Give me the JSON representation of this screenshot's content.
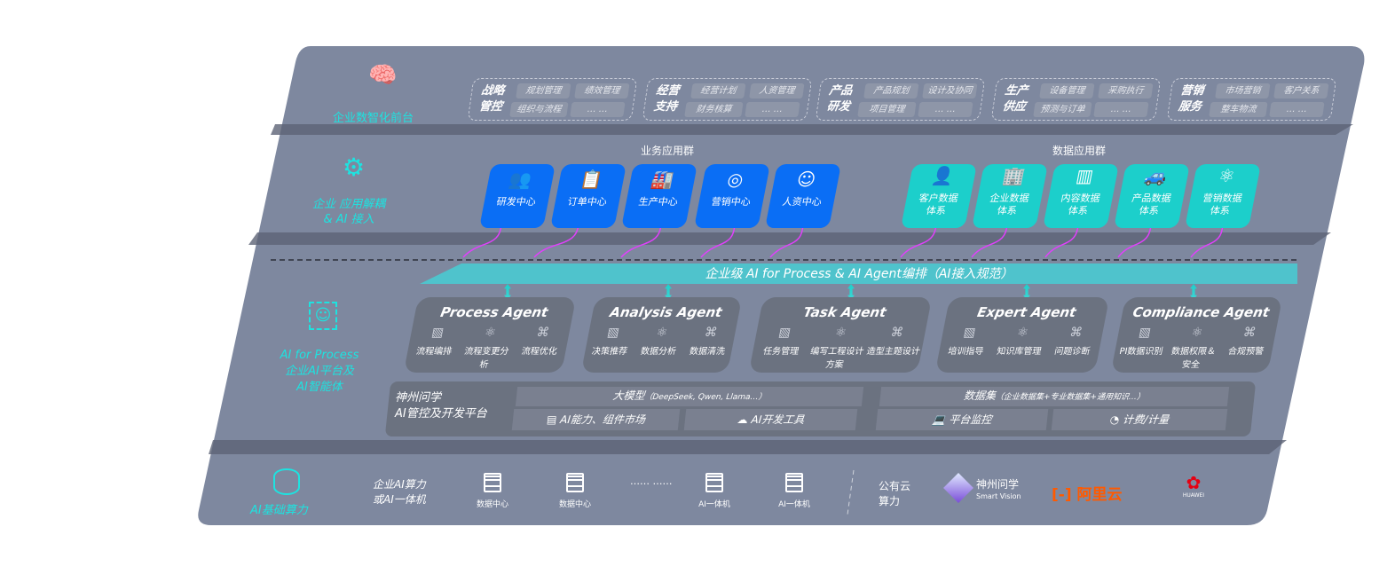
{
  "layers": {
    "front": {
      "label": "企业数智化前台",
      "icon": "brain-icon",
      "groups": [
        {
          "title": [
            "战略",
            "管控"
          ],
          "items": [
            "规划管理",
            "绩效管理",
            "组织与流程",
            "… …"
          ]
        },
        {
          "title": [
            "经营",
            "支持"
          ],
          "items": [
            "经营计划",
            "人资管理",
            "财务核算",
            "… …"
          ]
        },
        {
          "title": [
            "产品",
            "研发"
          ],
          "items": [
            "产品规划",
            "设计及协同",
            "项目管理",
            "… …"
          ]
        },
        {
          "title": [
            "生产",
            "供应"
          ],
          "items": [
            "设备管理",
            "采购执行",
            "预测与订单",
            "… …"
          ]
        },
        {
          "title": [
            "营销",
            "服务"
          ],
          "items": [
            "市场营销",
            "客户关系",
            "整车物流",
            "… …"
          ]
        }
      ]
    },
    "apps": {
      "label": [
        "企业 应用解耦",
        "& AI 接入"
      ],
      "icon": "molecule-icon",
      "business_title": "业务应用群",
      "business": [
        {
          "label": "研发中心",
          "icon": "👥"
        },
        {
          "label": "订单中心",
          "icon": "📋"
        },
        {
          "label": "生产中心",
          "icon": "🏭"
        },
        {
          "label": "营销中心",
          "icon": "◎"
        },
        {
          "label": "人资中心",
          "icon": "☺"
        }
      ],
      "data_title": "数据应用群",
      "data": [
        {
          "label": [
            "客户数据",
            "体系"
          ],
          "icon": "👤"
        },
        {
          "label": [
            "企业数据",
            "体系"
          ],
          "icon": "🏢"
        },
        {
          "label": [
            "内容数据",
            "体系"
          ],
          "icon": "▥"
        },
        {
          "label": [
            "产品数据",
            "体系"
          ],
          "icon": "🚙"
        },
        {
          "label": [
            "营销数据",
            "体系"
          ],
          "icon": "⚛"
        }
      ]
    },
    "ai": {
      "label": [
        "AI for Process",
        "企业AI平台及",
        "AI智能体"
      ],
      "icon": "face-scan-icon",
      "banner": "企业级 AI for Process & AI Agent编排（AI接入规范）",
      "agents": [
        {
          "name": "Process Agent",
          "items": [
            "流程编排",
            "流程变更分析",
            "流程优化"
          ]
        },
        {
          "name": "Analysis Agent",
          "items": [
            "决策推荐",
            "数据分析",
            "数据清洗"
          ]
        },
        {
          "name": "Task Agent",
          "items": [
            "任务管理",
            "编写工程设计方案",
            "造型主题设计"
          ]
        },
        {
          "name": "Expert Agent",
          "items": [
            "培训指导",
            "知识库管理",
            "问题诊断"
          ]
        },
        {
          "name": "Compliance Agent",
          "items": [
            "PI数据识别",
            "数据权限＆安全",
            "合规预警"
          ]
        }
      ],
      "platform": {
        "label": [
          "神州问学",
          "AI管控及开发平台"
        ],
        "model": "大模型",
        "model_note": "（DeepSeek, Qwen, Llama…）",
        "market": "AI能力、组件市场",
        "devtools": "AI开发工具",
        "dataset": "数据集",
        "dataset_note": "（企业数据集+专业数据集+通用知识…）",
        "monitor": "平台监控",
        "billing": "计费/计量"
      }
    },
    "infra": {
      "label": "AI基础算力",
      "icon": "database-icon",
      "onprem": [
        "企业AI算力",
        "或AI一体机"
      ],
      "servers": [
        "数据中心",
        "数据中心",
        "AI一体机",
        "AI一体机"
      ],
      "ellipsis": "…… ……",
      "cloud": [
        "公有云",
        "算力"
      ],
      "vendors": {
        "smartvision": "神州问学",
        "smartvision_sub": "Smart Vision",
        "aliyun": "阿里云",
        "huawei": "HUAWEI"
      }
    }
  },
  "colors": {
    "panel": "#7e889f",
    "accent": "#1de3e0",
    "blue": "#0a6ef5",
    "teal": "#1ccfcb",
    "connector": "#e040fb"
  }
}
